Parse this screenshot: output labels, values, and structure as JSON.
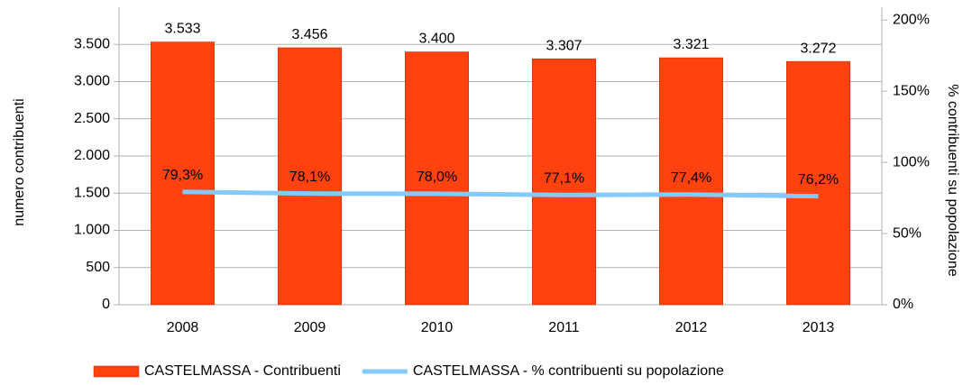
{
  "chart_data": {
    "type": "bar-line",
    "categories": [
      "2008",
      "2009",
      "2010",
      "2011",
      "2012",
      "2013"
    ],
    "series": [
      {
        "name": "CASTELMASSA - Contribuenti",
        "type": "bar",
        "color": "#ff420e",
        "values": [
          3533,
          3456,
          3400,
          3307,
          3321,
          3272
        ],
        "value_labels": [
          "3.533",
          "3.456",
          "3.400",
          "3.307",
          "3.321",
          "3.272"
        ]
      },
      {
        "name": "CASTELMASSA - % contribuenti su popolazione",
        "type": "line",
        "axis": "y2",
        "color": "#83caff",
        "values": [
          79.3,
          78.1,
          78.0,
          77.1,
          77.4,
          76.2
        ],
        "value_labels": [
          "79,3%",
          "78,1%",
          "78,0%",
          "77,1%",
          "77,4%",
          "76,2%"
        ]
      }
    ],
    "ylabel": "numero contribuenti",
    "y2label": "% contribuenti su popolazione",
    "ylim": [
      0,
      4000
    ],
    "yticks": [
      0,
      500,
      {
        "value": 1000,
        "label": "1.000"
      },
      {
        "value": 1500,
        "label": "1.500"
      },
      {
        "value": 2000,
        "label": "2.000"
      },
      {
        "value": 2500,
        "label": "2.500"
      },
      {
        "value": 3000,
        "label": "3.000"
      },
      {
        "value": 3500,
        "label": "3.500"
      }
    ],
    "y2lim": [
      0,
      209
    ],
    "y2ticks": [
      {
        "value": 0,
        "label": "0%"
      },
      {
        "value": 50,
        "label": "50%"
      },
      {
        "value": 100,
        "label": "100%"
      },
      {
        "value": 150,
        "label": "150%"
      },
      {
        "value": 200,
        "label": "200%"
      }
    ],
    "grid": true,
    "legend": "bottom"
  }
}
